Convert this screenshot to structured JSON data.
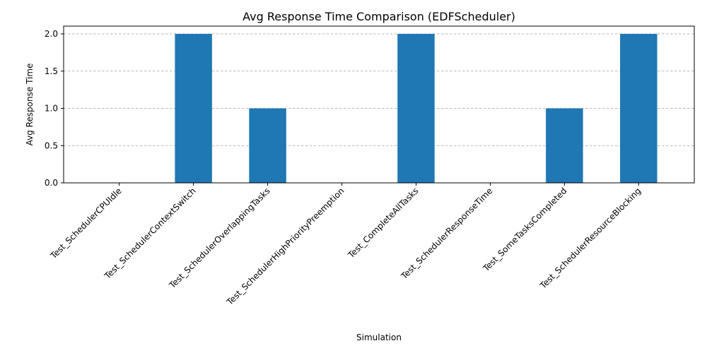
{
  "chart_data": {
    "type": "bar",
    "title": "Avg Response Time Comparison (EDFScheduler)",
    "xlabel": "Simulation",
    "ylabel": "Avg Response Time",
    "categories": [
      "Test_SchedulerCPUIdle",
      "Test_SchedulerContextSwitch",
      "Test_SchedulerOverlappingTasks",
      "Test_SchedulerHighPriorityPreemption",
      "Test_CompleteAllTasks",
      "Test_SchedulerResponseTime",
      "Test_SomeTasksCompleted",
      "Test_SchedulerResourceBlocking"
    ],
    "values": [
      0,
      2,
      1,
      0,
      2,
      0,
      1,
      2
    ],
    "ylim": [
      0,
      2.0
    ],
    "yticks": [
      0.0,
      0.5,
      1.0,
      1.5,
      2.0
    ],
    "ytick_labels": [
      "0.0",
      "0.5",
      "1.0",
      "1.5",
      "2.0"
    ],
    "grid": "y-dashed",
    "bar_color": "#1f77b4"
  }
}
